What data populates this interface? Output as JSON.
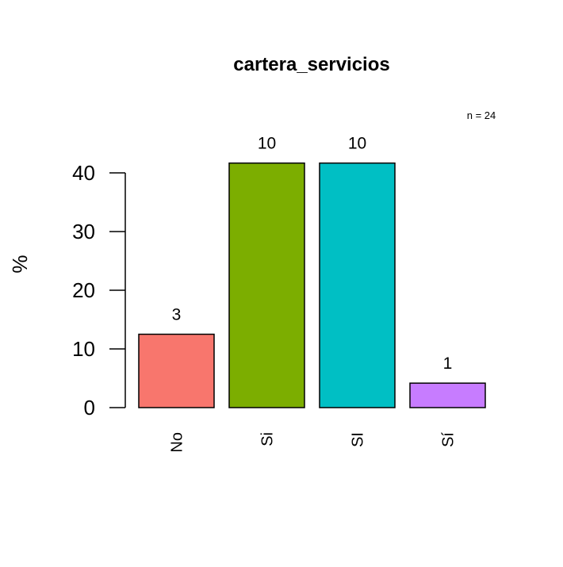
{
  "chart_data": {
    "type": "bar",
    "title": "cartera_servicios",
    "note": "n = 24",
    "xlabel": "",
    "ylabel": "%",
    "ylim": [
      0,
      40
    ],
    "yticks": [
      0,
      10,
      20,
      30,
      40
    ],
    "categories": [
      "No",
      "Si",
      "SI",
      "Sí"
    ],
    "values": [
      12.5,
      41.67,
      41.67,
      4.17
    ],
    "data_labels": [
      "3",
      "10",
      "10",
      "1"
    ],
    "colors": [
      "#F8766D",
      "#7CAE00",
      "#00BFC4",
      "#C77CFF"
    ]
  }
}
